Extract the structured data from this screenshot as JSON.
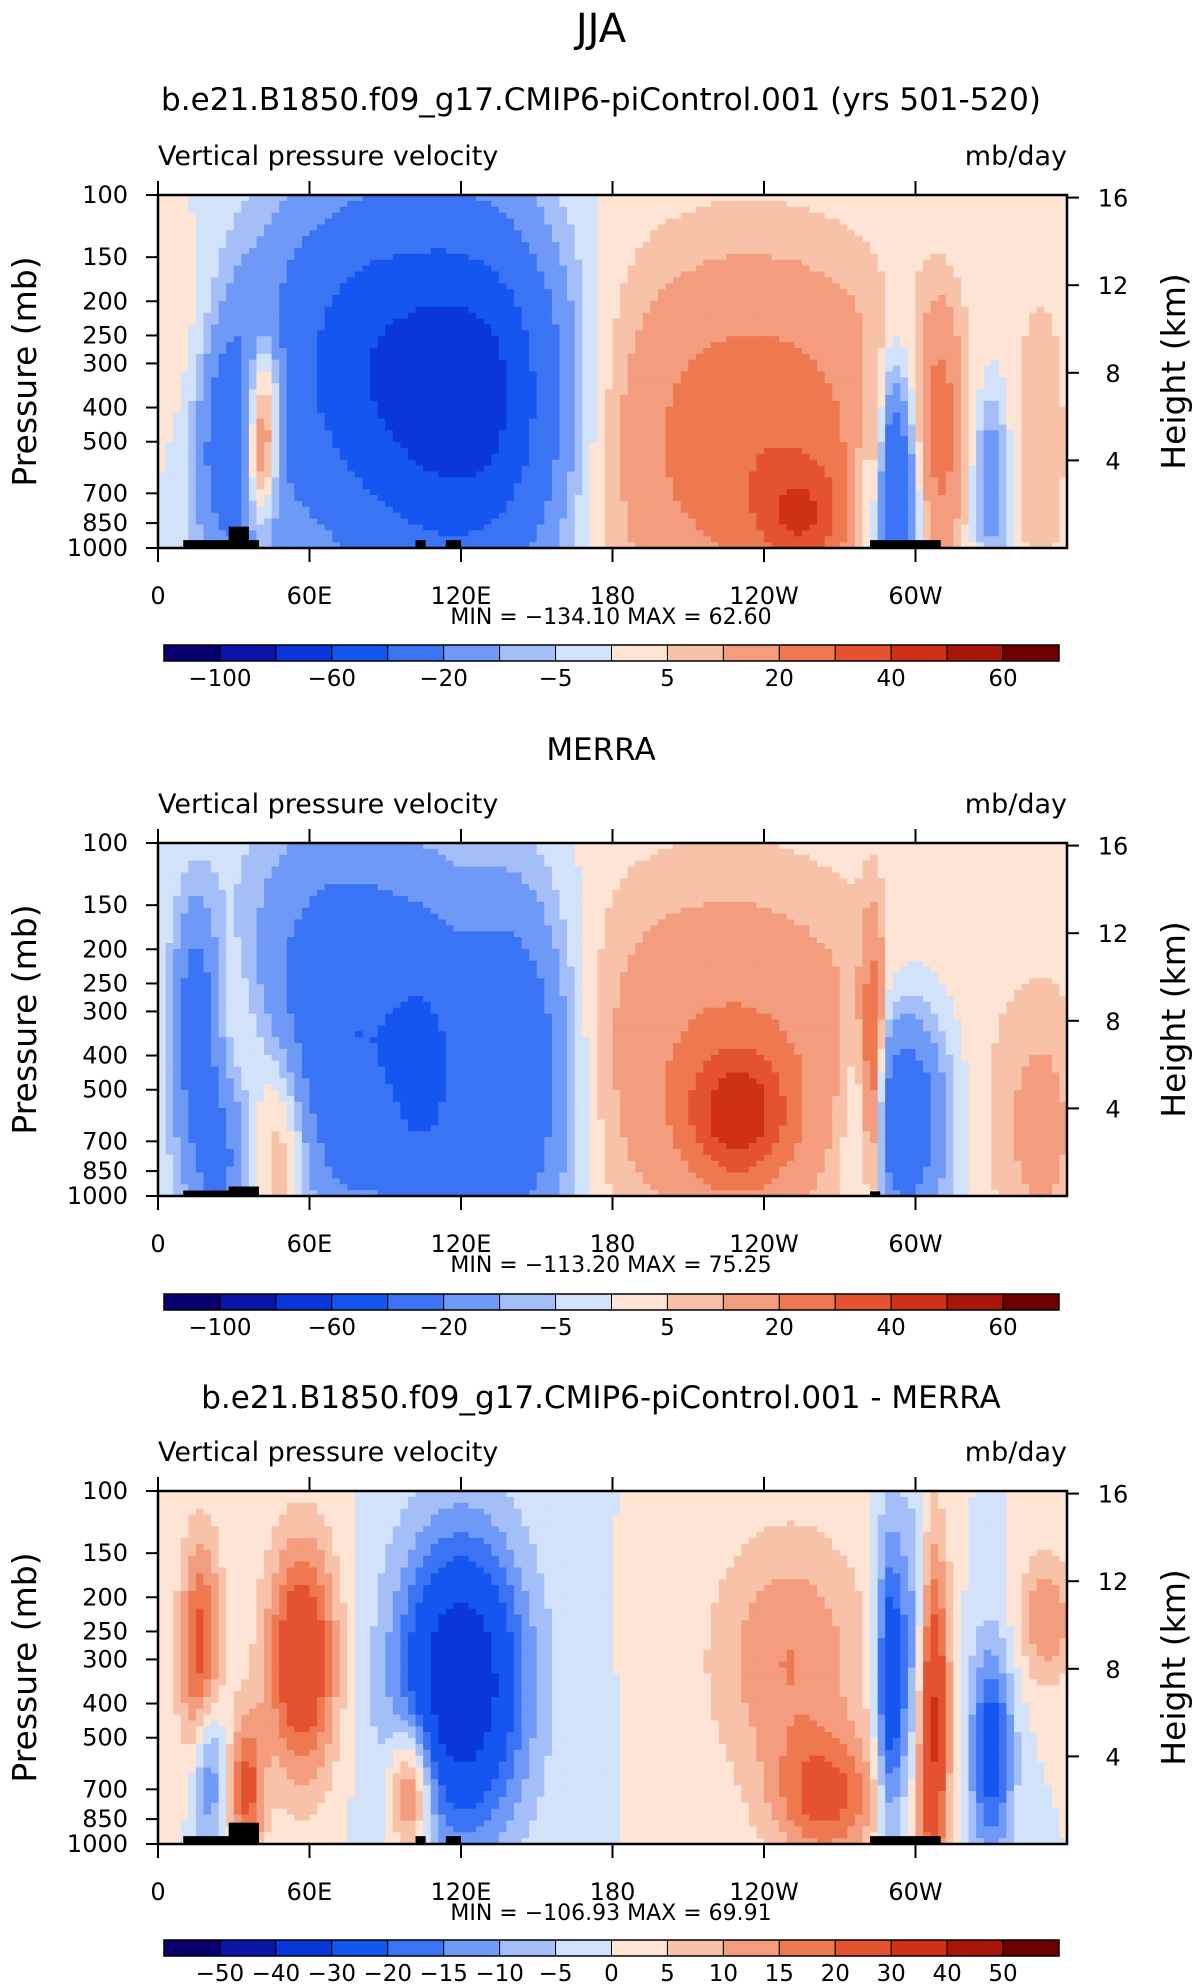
{
  "season_title": "JJA",
  "colors": {
    "cbar_main": [
      "#08006e",
      "#0b14a8",
      "#0b36dc",
      "#1556f0",
      "#3a74f5",
      "#6f99f6",
      "#a4bff8",
      "#d2e2fb",
      "#fde4d4",
      "#f8c2a8",
      "#f39d7e",
      "#ee7850",
      "#e45231",
      "#cf3117",
      "#a81509",
      "#6e0000"
    ],
    "cbar_diff": [
      "#08006e",
      "#0b14a8",
      "#0b36dc",
      "#1556f0",
      "#3a74f5",
      "#6f99f6",
      "#a4bff8",
      "#d2e2fb",
      "#fde4d4",
      "#f8c2a8",
      "#f39d7e",
      "#ee7850",
      "#e45231",
      "#cf3117",
      "#a81509",
      "#6e0000"
    ],
    "land": "#000000"
  },
  "chart_data": [
    {
      "type": "heatmap",
      "title": "b.e21.B1850.f09_g17.CMIP6-piControl.001 (yrs 501-520)",
      "left_label": "Vertical pressure velocity",
      "right_label": "mb/day",
      "ylabel": "Pressure (mb)",
      "y2label": "Height (km)",
      "xticks": [
        "0",
        "60E",
        "120E",
        "180",
        "120W",
        "60W"
      ],
      "xtick_lons": [
        0,
        60,
        120,
        180,
        240,
        300
      ],
      "xlim": [
        0,
        360
      ],
      "yticks": [
        "100",
        "150",
        "200",
        "250",
        "300",
        "400",
        "500",
        "700",
        "850",
        "1000"
      ],
      "ytick_values": [
        100,
        150,
        200,
        250,
        300,
        400,
        500,
        700,
        850,
        1000
      ],
      "ylim": [
        1000,
        100
      ],
      "yscale": "log",
      "y2ticks": [
        "16",
        "12",
        "8",
        "4"
      ],
      "y2tick_km": [
        16,
        12,
        8,
        4
      ],
      "stats": "MIN = −134.10   MAX =   62.60",
      "colorbar_labels": [
        "−100",
        "−60",
        "−20",
        "−5",
        "5",
        "20",
        "40",
        "60"
      ],
      "colorbar_label_bounds": [
        1,
        3,
        5,
        7,
        9,
        11,
        13,
        15
      ],
      "features": [
        {
          "lon": 30,
          "p": 500,
          "w_lon": 12,
          "w_p": 0.55,
          "v": -35
        },
        {
          "lon": 42,
          "p": 380,
          "w_lon": 6,
          "w_p": 0.35,
          "v": 35
        },
        {
          "lon": 40,
          "p": 600,
          "w_lon": 5,
          "w_p": 0.3,
          "v": 30
        },
        {
          "lon": 15,
          "p": 350,
          "w_lon": 10,
          "w_p": 0.6,
          "v": 10
        },
        {
          "lon": 85,
          "p": 280,
          "w_lon": 30,
          "w_p": 0.75,
          "v": -45
        },
        {
          "lon": 130,
          "p": 350,
          "w_lon": 22,
          "w_p": 0.75,
          "v": -45
        },
        {
          "lon": 110,
          "p": 600,
          "w_lon": 35,
          "w_p": 0.8,
          "v": -20
        },
        {
          "lon": 235,
          "p": 500,
          "w_lon": 45,
          "w_p": 0.85,
          "v": 28
        },
        {
          "lon": 255,
          "p": 820,
          "w_lon": 12,
          "w_p": 0.25,
          "v": 22
        },
        {
          "lon": 290,
          "p": 700,
          "w_lon": 7,
          "w_p": 0.55,
          "v": -55
        },
        {
          "lon": 285,
          "p": 600,
          "w_lon": 3,
          "w_p": 0.45,
          "v": 25
        },
        {
          "lon": 310,
          "p": 450,
          "w_lon": 6,
          "w_p": 0.55,
          "v": 20
        },
        {
          "lon": 330,
          "p": 650,
          "w_lon": 5,
          "w_p": 0.4,
          "v": -20
        },
        {
          "lon": 350,
          "p": 500,
          "w_lon": 8,
          "w_p": 0.8,
          "v": 8
        }
      ],
      "land_blocks": [
        [
          10,
          40,
          950
        ],
        [
          28,
          36,
          870
        ],
        [
          102,
          106,
          950
        ],
        [
          114,
          120,
          950
        ],
        [
          282,
          310,
          950
        ]
      ]
    },
    {
      "type": "heatmap",
      "title": "MERRA",
      "left_label": "Vertical pressure velocity",
      "right_label": "mb/day",
      "ylabel": "Pressure (mb)",
      "y2label": "Height (km)",
      "xticks": [
        "0",
        "60E",
        "120E",
        "180",
        "120W",
        "60W"
      ],
      "xtick_lons": [
        0,
        60,
        120,
        180,
        240,
        300
      ],
      "xlim": [
        0,
        360
      ],
      "yticks": [
        "100",
        "150",
        "200",
        "250",
        "300",
        "400",
        "500",
        "700",
        "850",
        "1000"
      ],
      "ytick_values": [
        100,
        150,
        200,
        250,
        300,
        400,
        500,
        700,
        850,
        1000
      ],
      "ylim": [
        1000,
        100
      ],
      "yscale": "log",
      "y2ticks": [
        "16",
        "12",
        "8",
        "4"
      ],
      "y2tick_km": [
        16,
        12,
        8,
        4
      ],
      "stats": "MIN = −113.20   MAX =   75.25",
      "colorbar_labels": [
        "−100",
        "−60",
        "−20",
        "−5",
        "5",
        "20",
        "40",
        "60"
      ],
      "colorbar_label_bounds": [
        1,
        3,
        5,
        7,
        9,
        11,
        13,
        15
      ],
      "features": [
        {
          "lon": 15,
          "p": 300,
          "w_lon": 6,
          "w_p": 0.5,
          "v": -25
        },
        {
          "lon": 25,
          "p": 700,
          "w_lon": 10,
          "w_p": 0.5,
          "v": -25
        },
        {
          "lon": 48,
          "p": 650,
          "w_lon": 10,
          "w_p": 0.55,
          "v": 25
        },
        {
          "lon": 30,
          "p": 400,
          "w_lon": 8,
          "w_p": 0.5,
          "v": 15
        },
        {
          "lon": 75,
          "p": 350,
          "w_lon": 28,
          "w_p": 0.85,
          "v": -40
        },
        {
          "lon": 140,
          "p": 450,
          "w_lon": 18,
          "w_p": 0.8,
          "v": -40
        },
        {
          "lon": 105,
          "p": 500,
          "w_lon": 10,
          "w_p": 0.7,
          "v": -20
        },
        {
          "lon": 225,
          "p": 400,
          "w_lon": 48,
          "w_p": 0.85,
          "v": 20
        },
        {
          "lon": 230,
          "p": 600,
          "w_lon": 14,
          "w_p": 0.3,
          "v": 32
        },
        {
          "lon": 295,
          "p": 600,
          "w_lon": 12,
          "w_p": 0.5,
          "v": -40
        },
        {
          "lon": 283,
          "p": 450,
          "w_lon": 3,
          "w_p": 0.6,
          "v": 35
        },
        {
          "lon": 350,
          "p": 650,
          "w_lon": 14,
          "w_p": 0.7,
          "v": 12
        }
      ],
      "land_blocks": [
        [
          10,
          40,
          965
        ],
        [
          28,
          40,
          940
        ],
        [
          282,
          286,
          970
        ]
      ]
    },
    {
      "type": "heatmap",
      "title": "b.e21.B1850.f09_g17.CMIP6-piControl.001 - MERRA",
      "left_label": "Vertical pressure velocity",
      "right_label": "mb/day",
      "ylabel": "Pressure (mb)",
      "y2label": "Height (km)",
      "xticks": [
        "0",
        "60E",
        "120E",
        "180",
        "120W",
        "60W"
      ],
      "xtick_lons": [
        0,
        60,
        120,
        180,
        240,
        300
      ],
      "xlim": [
        0,
        360
      ],
      "yticks": [
        "100",
        "150",
        "200",
        "250",
        "300",
        "400",
        "500",
        "700",
        "850",
        "1000"
      ],
      "ytick_values": [
        100,
        150,
        200,
        250,
        300,
        400,
        500,
        700,
        850,
        1000
      ],
      "ylim": [
        1000,
        100
      ],
      "yscale": "log",
      "y2ticks": [
        "16",
        "12",
        "8",
        "4"
      ],
      "y2tick_km": [
        16,
        12,
        8,
        4
      ],
      "stats": "MIN = −106.93   MAX =   69.91",
      "colorbar_labels": [
        "−50",
        "−40",
        "−30",
        "−20",
        "−15",
        "−10",
        "−5",
        "0",
        "5",
        "10",
        "15",
        "20",
        "30",
        "40",
        "50"
      ],
      "colorbar_label_bounds": [
        1,
        2,
        3,
        4,
        5,
        6,
        7,
        8,
        9,
        10,
        11,
        12,
        13,
        14,
        15
      ],
      "features": [
        {
          "lon": 17,
          "p": 300,
          "w_lon": 6,
          "w_p": 0.55,
          "v": 25
        },
        {
          "lon": 57,
          "p": 300,
          "w_lon": 10,
          "w_p": 0.55,
          "v": 30
        },
        {
          "lon": 20,
          "p": 600,
          "w_lon": 5,
          "w_p": 0.4,
          "v": -20
        },
        {
          "lon": 35,
          "p": 700,
          "w_lon": 5,
          "w_p": 0.35,
          "v": 22
        },
        {
          "lon": 120,
          "p": 350,
          "w_lon": 18,
          "w_p": 0.7,
          "v": -40
        },
        {
          "lon": 100,
          "p": 700,
          "w_lon": 6,
          "w_p": 0.3,
          "v": 25
        },
        {
          "lon": 250,
          "p": 300,
          "w_lon": 22,
          "w_p": 0.6,
          "v": 15
        },
        {
          "lon": 265,
          "p": 750,
          "w_lon": 15,
          "w_p": 0.3,
          "v": 20
        },
        {
          "lon": 290,
          "p": 350,
          "w_lon": 4,
          "w_p": 0.7,
          "v": -30
        },
        {
          "lon": 306,
          "p": 450,
          "w_lon": 5,
          "w_p": 0.8,
          "v": 35
        },
        {
          "lon": 300,
          "p": 300,
          "w_lon": 4,
          "w_p": 0.7,
          "v": -20
        },
        {
          "lon": 330,
          "p": 550,
          "w_lon": 6,
          "w_p": 0.5,
          "v": -25
        },
        {
          "lon": 352,
          "p": 230,
          "w_lon": 8,
          "w_p": 0.3,
          "v": 15
        }
      ],
      "land_blocks": [
        [
          10,
          40,
          950
        ],
        [
          28,
          40,
          870
        ],
        [
          102,
          106,
          950
        ],
        [
          114,
          120,
          950
        ],
        [
          282,
          310,
          950
        ]
      ]
    }
  ]
}
